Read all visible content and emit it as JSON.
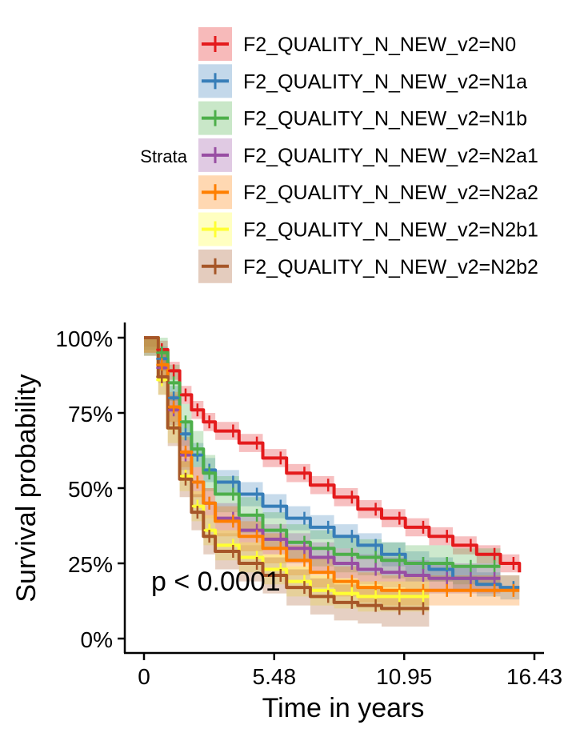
{
  "chart_data": {
    "type": "line",
    "subtype": "kaplan-meier survival curve with confidence bands",
    "xlabel": "Time in years",
    "ylabel": "Survival probability",
    "xlim": [
      0,
      16.43
    ],
    "ylim": [
      0,
      1
    ],
    "x_ticks": [
      0,
      5.48,
      10.95,
      16.43
    ],
    "x_tick_labels": [
      "0",
      "5.48",
      "10.95",
      "16.43"
    ],
    "y_ticks": [
      0,
      0.25,
      0.5,
      0.75,
      1.0
    ],
    "y_tick_labels": [
      "0%",
      "25%",
      "50%",
      "75%",
      "100%"
    ],
    "legend_title": "Strata",
    "legend_position": "top",
    "annotation": "p <  0.0001",
    "grid": false,
    "series": [
      {
        "name": "F2_QUALITY_N_NEW_v2=N0",
        "color": "#e41a1c",
        "band": 0.03,
        "x": [
          0,
          0.3,
          0.6,
          1.0,
          1.5,
          2.0,
          2.5,
          3.0,
          4.0,
          5.0,
          6.0,
          7.0,
          8.0,
          9.0,
          10.0,
          11.0,
          12.0,
          13.0,
          14.0,
          15.0,
          15.8
        ],
        "y": [
          1.0,
          1.0,
          0.96,
          0.89,
          0.81,
          0.76,
          0.72,
          0.69,
          0.65,
          0.6,
          0.55,
          0.51,
          0.47,
          0.43,
          0.4,
          0.37,
          0.34,
          0.31,
          0.28,
          0.25,
          0.22
        ]
      },
      {
        "name": "F2_QUALITY_N_NEW_v2=N1a",
        "color": "#377eb8",
        "band": 0.04,
        "x": [
          0,
          0.3,
          0.6,
          1.0,
          1.5,
          2.0,
          2.5,
          3.0,
          4.0,
          5.0,
          6.0,
          7.0,
          8.0,
          9.0,
          10.0,
          11.0,
          12.0,
          13.0,
          14.0,
          15.0,
          15.8
        ],
        "y": [
          1.0,
          1.0,
          0.93,
          0.8,
          0.68,
          0.61,
          0.56,
          0.52,
          0.48,
          0.44,
          0.4,
          0.37,
          0.34,
          0.31,
          0.28,
          0.25,
          0.23,
          0.2,
          0.18,
          0.17,
          0.17
        ]
      },
      {
        "name": "F2_QUALITY_N_NEW_v2=N1b",
        "color": "#4daf4a",
        "band": 0.06,
        "x": [
          0,
          0.3,
          0.6,
          1.0,
          1.5,
          2.0,
          2.5,
          3.0,
          4.0,
          5.0,
          6.0,
          7.0,
          8.0,
          9.0,
          10.0,
          11.0,
          12.0,
          13.0,
          14.0,
          15.0
        ],
        "y": [
          1.0,
          1.0,
          0.95,
          0.85,
          0.72,
          0.63,
          0.55,
          0.48,
          0.41,
          0.36,
          0.32,
          0.3,
          0.28,
          0.27,
          0.26,
          0.25,
          0.25,
          0.24,
          0.24,
          0.24
        ]
      },
      {
        "name": "F2_QUALITY_N_NEW_v2=N2a1",
        "color": "#984ea3",
        "band": 0.05,
        "x": [
          0,
          0.3,
          0.6,
          1.0,
          1.5,
          2.0,
          2.5,
          3.0,
          4.0,
          5.0,
          6.0,
          7.0,
          8.0,
          9.0,
          10.0,
          11.0,
          12.0,
          13.0,
          14.0,
          15.0
        ],
        "y": [
          1.0,
          1.0,
          0.9,
          0.76,
          0.61,
          0.52,
          0.45,
          0.4,
          0.36,
          0.33,
          0.3,
          0.27,
          0.25,
          0.23,
          0.22,
          0.21,
          0.2,
          0.2,
          0.2,
          0.2
        ]
      },
      {
        "name": "F2_QUALITY_N_NEW_v2=N2a2",
        "color": "#ff7f00",
        "band": 0.05,
        "x": [
          0,
          0.3,
          0.6,
          1.0,
          1.5,
          2.0,
          2.5,
          3.0,
          4.0,
          5.0,
          6.0,
          7.0,
          8.0,
          9.0,
          10.0,
          11.0,
          12.0,
          13.0,
          14.0,
          15.0,
          15.8
        ],
        "y": [
          1.0,
          1.0,
          0.91,
          0.77,
          0.62,
          0.52,
          0.45,
          0.39,
          0.34,
          0.3,
          0.26,
          0.22,
          0.19,
          0.17,
          0.16,
          0.16,
          0.16,
          0.16,
          0.16,
          0.16,
          0.16
        ]
      },
      {
        "name": "F2_QUALITY_N_NEW_v2=N2b1",
        "color": "#ffff33",
        "band": 0.05,
        "x": [
          0,
          0.3,
          0.6,
          1.0,
          1.5,
          2.0,
          2.5,
          3.0,
          4.0,
          5.0,
          6.0,
          7.0,
          8.0,
          9.0,
          10.0,
          11.0,
          12.0
        ],
        "y": [
          1.0,
          1.0,
          0.86,
          0.7,
          0.54,
          0.44,
          0.36,
          0.31,
          0.27,
          0.23,
          0.19,
          0.16,
          0.15,
          0.14,
          0.14,
          0.14,
          0.14
        ]
      },
      {
        "name": "F2_QUALITY_N_NEW_v2=N2b2",
        "color": "#a65628",
        "band": 0.06,
        "x": [
          0,
          0.3,
          0.6,
          1.0,
          1.5,
          2.0,
          2.5,
          3.0,
          4.0,
          5.0,
          6.0,
          7.0,
          8.0,
          9.0,
          10.0,
          11.0,
          12.0
        ],
        "y": [
          1.0,
          1.0,
          0.87,
          0.7,
          0.53,
          0.42,
          0.34,
          0.29,
          0.25,
          0.21,
          0.17,
          0.14,
          0.12,
          0.11,
          0.1,
          0.1,
          0.1
        ]
      }
    ]
  }
}
